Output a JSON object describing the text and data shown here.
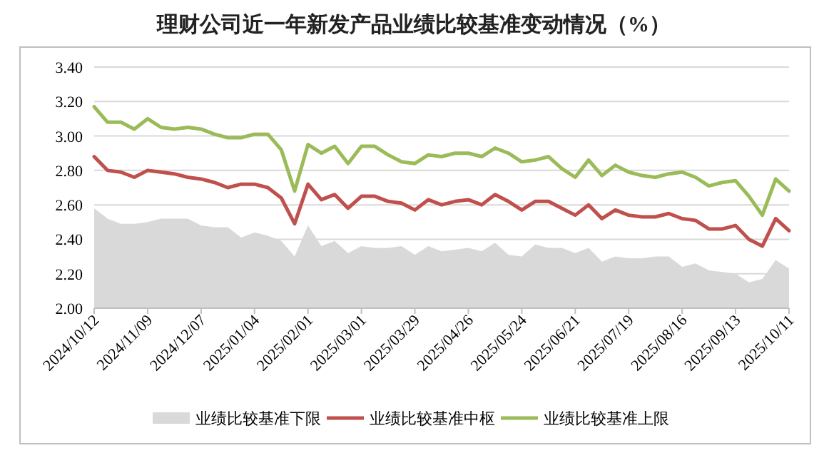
{
  "chart_data": {
    "type": "line",
    "title": "理财公司近一年新发产品业绩比较基准变动情况（%）",
    "x": [
      "2024-10-12",
      "2024-10-19",
      "2024-10-26",
      "2024-11-02",
      "2024-11-09",
      "2024-11-16",
      "2024-11-23",
      "2024-11-30",
      "2024-12-07",
      "2024-12-14",
      "2024-12-21",
      "2024-12-28",
      "2025-01-04",
      "2025-01-11",
      "2025-01-18",
      "2025-01-25",
      "2025-02-01",
      "2025-02-08",
      "2025-02-15",
      "2025-02-22",
      "2025-03-01",
      "2025-03-08",
      "2025-03-15",
      "2025-03-22",
      "2025-03-29",
      "2025-04-05",
      "2025-04-12",
      "2025-04-19",
      "2025-04-26",
      "2025-05-03",
      "2025-05-10",
      "2025-05-17",
      "2025-05-24",
      "2025-05-31",
      "2025-06-07",
      "2025-06-14",
      "2025-06-21",
      "2025-06-28",
      "2025-07-05",
      "2025-07-12",
      "2025-07-19",
      "2025-07-26",
      "2025-08-02",
      "2025-08-09",
      "2025-08-16",
      "2025-08-23",
      "2025-08-30",
      "2025-09-06",
      "2025-09-13",
      "2025-09-20",
      "2025-09-27",
      "2025-10-04",
      "2025-10-11"
    ],
    "series": [
      {
        "name": "业绩比较基准下限",
        "type": "area",
        "color": "#d9d9d9",
        "values": [
          2.58,
          2.52,
          2.49,
          2.49,
          2.5,
          2.52,
          2.52,
          2.52,
          2.48,
          2.47,
          2.47,
          2.41,
          2.44,
          2.42,
          2.39,
          2.3,
          2.48,
          2.36,
          2.39,
          2.32,
          2.36,
          2.35,
          2.35,
          2.36,
          2.31,
          2.36,
          2.33,
          2.34,
          2.35,
          2.33,
          2.38,
          2.31,
          2.3,
          2.37,
          2.35,
          2.35,
          2.32,
          2.35,
          2.27,
          2.3,
          2.29,
          2.29,
          2.3,
          2.3,
          2.24,
          2.26,
          2.22,
          2.21,
          2.2,
          2.15,
          2.17,
          2.28,
          2.23
        ]
      },
      {
        "name": "业绩比较基准中枢",
        "color": "#c0504d",
        "values": [
          2.88,
          2.8,
          2.79,
          2.76,
          2.8,
          2.79,
          2.78,
          2.76,
          2.75,
          2.73,
          2.7,
          2.72,
          2.72,
          2.7,
          2.64,
          2.49,
          2.72,
          2.63,
          2.66,
          2.58,
          2.65,
          2.65,
          2.62,
          2.61,
          2.57,
          2.63,
          2.6,
          2.62,
          2.63,
          2.6,
          2.66,
          2.62,
          2.57,
          2.62,
          2.62,
          2.58,
          2.54,
          2.6,
          2.52,
          2.57,
          2.54,
          2.53,
          2.53,
          2.55,
          2.52,
          2.51,
          2.46,
          2.46,
          2.48,
          2.4,
          2.36,
          2.52,
          2.45
        ]
      },
      {
        "name": "业绩比较基准上限",
        "color": "#9bbb59",
        "values": [
          3.17,
          3.08,
          3.08,
          3.04,
          3.1,
          3.05,
          3.04,
          3.05,
          3.04,
          3.01,
          2.99,
          2.99,
          3.01,
          3.01,
          2.92,
          2.68,
          2.95,
          2.9,
          2.94,
          2.84,
          2.94,
          2.94,
          2.89,
          2.85,
          2.84,
          2.89,
          2.88,
          2.9,
          2.9,
          2.88,
          2.93,
          2.9,
          2.85,
          2.86,
          2.88,
          2.81,
          2.76,
          2.86,
          2.77,
          2.83,
          2.79,
          2.77,
          2.76,
          2.78,
          2.79,
          2.76,
          2.71,
          2.73,
          2.74,
          2.65,
          2.54,
          2.75,
          2.68
        ]
      }
    ],
    "xlim": [
      "2024-10-12",
      "2025-10-11"
    ],
    "xticks": [
      {
        "value": "2024-10-12",
        "label": "2024/10/12"
      },
      {
        "value": "2024-11-09",
        "label": "2024/11/09"
      },
      {
        "value": "2024-12-07",
        "label": "2024/12/07"
      },
      {
        "value": "2025-01-04",
        "label": "2025/01/04"
      },
      {
        "value": "2025-02-01",
        "label": "2025/02/01"
      },
      {
        "value": "2025-03-01",
        "label": "2025/03/01"
      },
      {
        "value": "2025-03-29",
        "label": "2025/03/29"
      },
      {
        "value": "2025-04-26",
        "label": "2025/04/26"
      },
      {
        "value": "2025-05-24",
        "label": "2025/05/24"
      },
      {
        "value": "2025-06-21",
        "label": "2025/06/21"
      },
      {
        "value": "2025-07-19",
        "label": "2025/07/19"
      },
      {
        "value": "2025-08-16",
        "label": "2025/08/16"
      },
      {
        "value": "2025-09-13",
        "label": "2025/09/13"
      },
      {
        "value": "2025-10-11",
        "label": "2025/10/11"
      }
    ],
    "ylim": [
      2.0,
      3.4
    ],
    "yticks": [
      {
        "value": 2.0,
        "label": "2.00"
      },
      {
        "value": 2.2,
        "label": "2.20"
      },
      {
        "value": 2.4,
        "label": "2.40"
      },
      {
        "value": 2.6,
        "label": "2.60"
      },
      {
        "value": 2.8,
        "label": "2.80"
      },
      {
        "value": 3.0,
        "label": "3.00"
      },
      {
        "value": 3.2,
        "label": "3.20"
      },
      {
        "value": 3.4,
        "label": "3.40"
      }
    ],
    "grid": "y",
    "legend": "bottom",
    "marker": "none",
    "line_style": "solid"
  }
}
